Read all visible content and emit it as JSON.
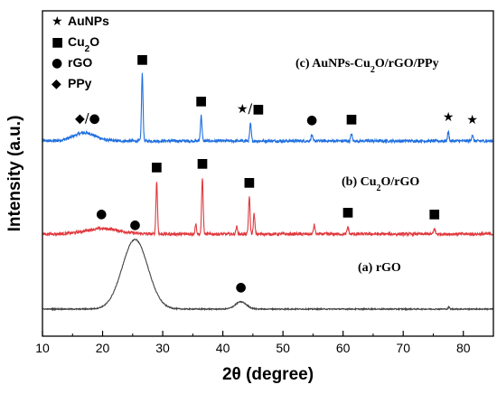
{
  "chart_data": {
    "type": "line",
    "xlabel": "2θ (degree)",
    "ylabel": "Intensity (a.u.)",
    "xlim": [
      10,
      85
    ],
    "xticks": [
      10,
      20,
      30,
      40,
      50,
      60,
      70,
      80
    ],
    "yticks": [],
    "legend": {
      "placement": "top-left",
      "items": [
        {
          "symbol": "★",
          "label_main": "AuNPs",
          "label_sub": "",
          "label_after": ""
        },
        {
          "symbol": "■",
          "label_main": "Cu",
          "label_sub": "2",
          "label_after": "O"
        },
        {
          "symbol": "●",
          "label_main": "rGO",
          "label_sub": "",
          "label_after": ""
        },
        {
          "symbol": "◆",
          "label_main": "PPy",
          "label_sub": "",
          "label_after": ""
        }
      ]
    },
    "series": [
      {
        "name": "(c) AuNPs-Cu2O/rGO/PPy",
        "label_parts": [
          {
            "t": "(c) AuNPs-Cu"
          },
          {
            "t": "2",
            "sub": true
          },
          {
            "t": "O/rGO/PPy"
          }
        ],
        "color": "#1f6fe0",
        "baseline": 0.0,
        "broad_peaks": [
          {
            "x": 17,
            "h": 9,
            "w": 2.6
          }
        ],
        "peaks": [
          {
            "x": 26.6,
            "h": 74
          },
          {
            "x": 36.4,
            "h": 28
          },
          {
            "x": 44.6,
            "h": 19
          },
          {
            "x": 54.8,
            "h": 7
          },
          {
            "x": 61.4,
            "h": 8
          },
          {
            "x": 77.5,
            "h": 10
          },
          {
            "x": 81.5,
            "h": 7
          }
        ],
        "markers": [
          {
            "x": 17.5,
            "symbol": "◆/●"
          },
          {
            "x": 26.6,
            "symbol": "■"
          },
          {
            "x": 36.4,
            "symbol": "■"
          },
          {
            "x": 44.6,
            "symbol": "★/■"
          },
          {
            "x": 54.8,
            "symbol": "●"
          },
          {
            "x": 61.4,
            "symbol": "■"
          },
          {
            "x": 77.5,
            "symbol": "★"
          },
          {
            "x": 81.5,
            "symbol": "★"
          }
        ]
      },
      {
        "name": "(b) Cu2O/rGO",
        "label_parts": [
          {
            "t": "(b) Cu"
          },
          {
            "t": "2",
            "sub": true
          },
          {
            "t": "O/rGO"
          }
        ],
        "color": "#e0393e",
        "baseline": 0.0,
        "broad_peaks": [
          {
            "x": 20,
            "h": 6,
            "w": 4
          }
        ],
        "peaks": [
          {
            "x": 29.0,
            "h": 58
          },
          {
            "x": 35.5,
            "h": 11
          },
          {
            "x": 36.6,
            "h": 62
          },
          {
            "x": 42.3,
            "h": 8
          },
          {
            "x": 44.4,
            "h": 41
          },
          {
            "x": 45.2,
            "h": 22
          },
          {
            "x": 55.2,
            "h": 10
          },
          {
            "x": 60.8,
            "h": 8
          },
          {
            "x": 75.2,
            "h": 6
          }
        ],
        "markers": [
          {
            "x": 19.8,
            "symbol": "●"
          },
          {
            "x": 29.0,
            "symbol": "■"
          },
          {
            "x": 36.6,
            "symbol": "■"
          },
          {
            "x": 44.4,
            "symbol": "■"
          },
          {
            "x": 60.8,
            "symbol": "■"
          },
          {
            "x": 75.2,
            "symbol": "■"
          }
        ]
      },
      {
        "name": "(a) rGO",
        "label_parts": [
          {
            "t": "(a) rGO"
          }
        ],
        "color": "#444444",
        "baseline": 0.0,
        "broad_peaks": [
          {
            "x": 25.4,
            "h": 77,
            "w": 3.0
          },
          {
            "x": 43.0,
            "h": 8,
            "w": 1.3
          }
        ],
        "peaks": [
          {
            "x": 77.6,
            "h": 2
          }
        ],
        "markers": [
          {
            "x": 25.4,
            "symbol": "●"
          },
          {
            "x": 43.0,
            "symbol": "●"
          }
        ]
      }
    ]
  }
}
